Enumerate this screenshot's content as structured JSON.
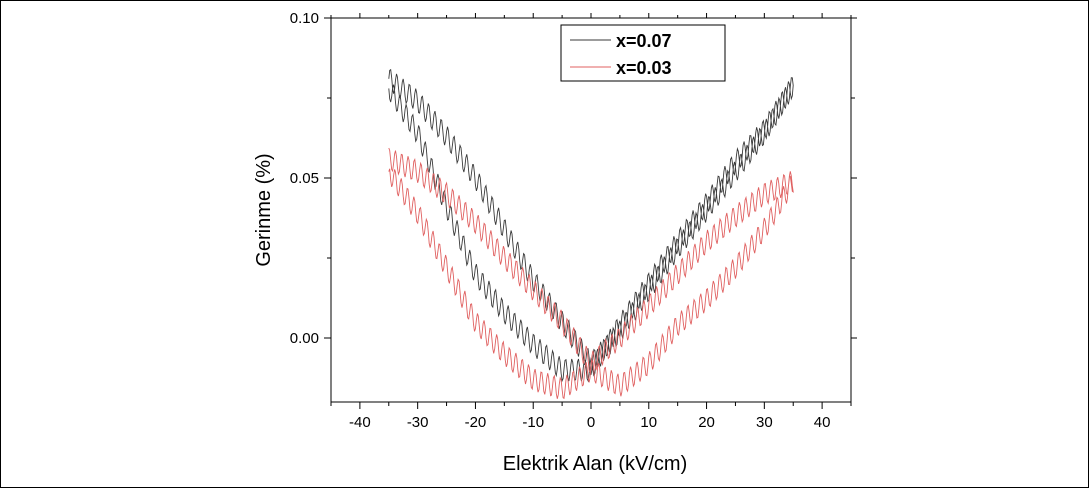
{
  "chart_data": {
    "type": "line",
    "title": "",
    "xlabel": "Elektrik Alan (kV/cm)",
    "ylabel": "Gerinme (%)",
    "xlim": [
      -45,
      45
    ],
    "ylim": [
      -0.02,
      0.1
    ],
    "xticks": [
      -40,
      -30,
      -20,
      -10,
      0,
      10,
      20,
      30,
      40
    ],
    "yticks": [
      0.0,
      0.05,
      0.1
    ],
    "ytick_labels": [
      "0.00",
      "0.05",
      "0.10"
    ],
    "grid": false,
    "legend": "top-right",
    "series": [
      {
        "name": "x=0.07",
        "color": "#3a3a3a",
        "x": [
          -35,
          -30,
          -25,
          -20,
          -15,
          -10,
          -5,
          0,
          5,
          10,
          15,
          20,
          25,
          30,
          35,
          30,
          25,
          20,
          15,
          10,
          5,
          0,
          -5,
          -10,
          -15,
          -20,
          -25,
          -30,
          -35
        ],
        "y": [
          0.081,
          0.074,
          0.063,
          0.05,
          0.034,
          0.018,
          0.005,
          -0.008,
          0.002,
          0.015,
          0.028,
          0.04,
          0.052,
          0.064,
          0.079,
          0.065,
          0.055,
          0.042,
          0.03,
          0.017,
          0.004,
          -0.01,
          -0.01,
          -0.002,
          0.008,
          0.02,
          0.041,
          0.064,
          0.078
        ],
        "ripple": 0.0035
      },
      {
        "name": "x=0.03",
        "color": "#e06060",
        "x": [
          -35,
          -30,
          -25,
          -20,
          -15,
          -10,
          -5,
          0,
          5,
          10,
          15,
          20,
          25,
          30,
          35,
          30,
          25,
          20,
          15,
          10,
          5,
          0,
          -5,
          -10,
          -15,
          -20,
          -25,
          -30,
          -35
        ],
        "y": [
          0.056,
          0.052,
          0.045,
          0.036,
          0.025,
          0.015,
          0.005,
          -0.008,
          0.0,
          0.01,
          0.02,
          0.03,
          0.038,
          0.045,
          0.049,
          0.034,
          0.022,
          0.012,
          0.004,
          -0.008,
          -0.015,
          -0.01,
          -0.016,
          -0.013,
          -0.005,
          0.005,
          0.022,
          0.039,
          0.052
        ],
        "ripple": 0.0035
      }
    ]
  }
}
